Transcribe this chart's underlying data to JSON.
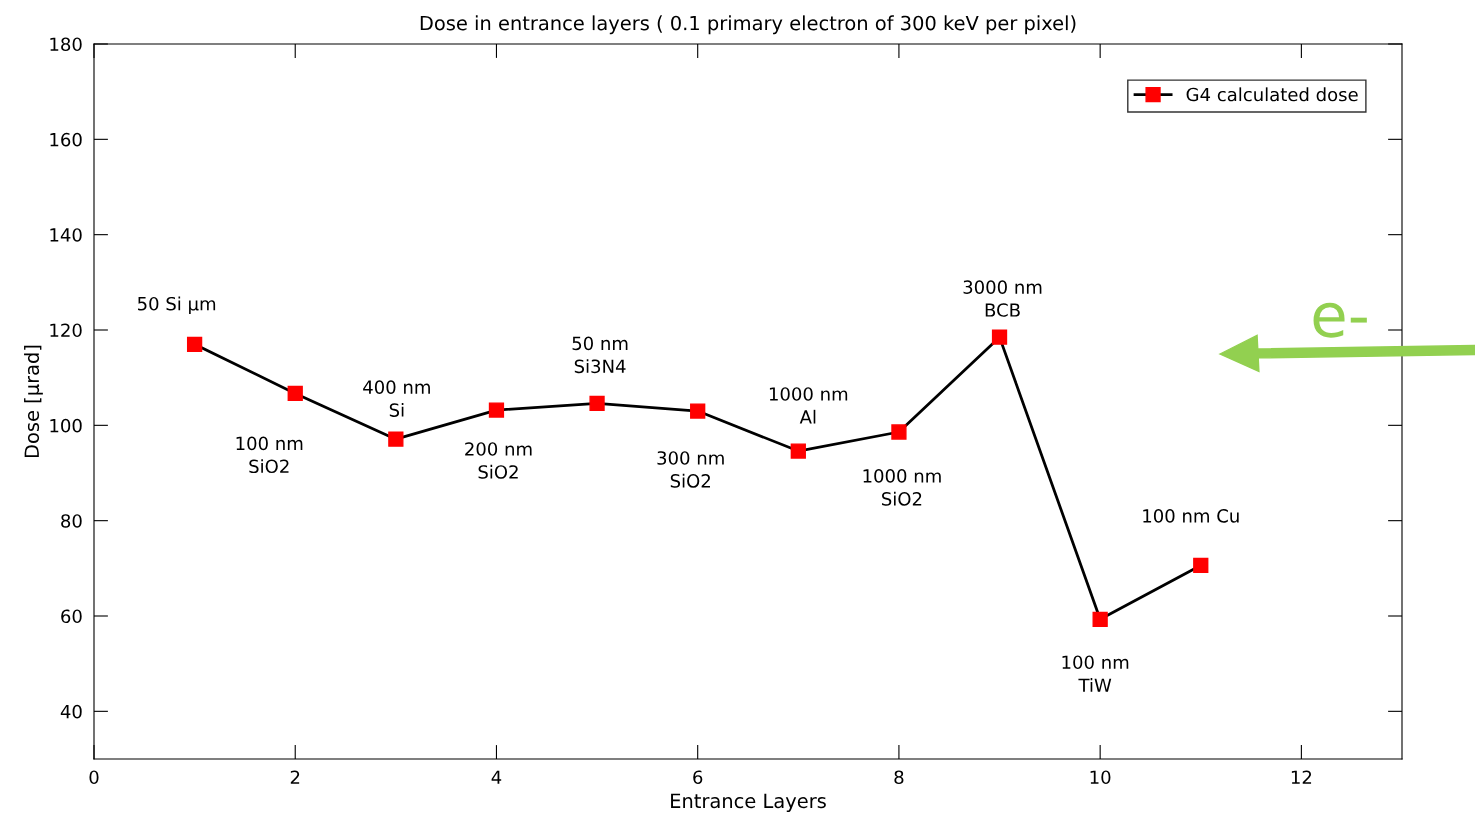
{
  "chart_data": {
    "type": "line",
    "title": "Dose in entrance layers ( 0.1 primary electron of 300 keV per pixel)",
    "xlabel": "Entrance Layers",
    "ylabel": "Dose [µrad]",
    "x": [
      1,
      2,
      3,
      4,
      5,
      6,
      7,
      8,
      9,
      10,
      11
    ],
    "series": [
      {
        "name": "G4 calculated dose",
        "color": "#ff0000",
        "values": [
          117.0,
          106.7,
          97.1,
          103.2,
          104.6,
          103.0,
          94.6,
          98.6,
          118.5,
          59.3,
          70.6
        ]
      }
    ],
    "xlim": [
      0,
      13
    ],
    "xticks": [
      0,
      2,
      4,
      6,
      8,
      10,
      12
    ],
    "ylim": [
      30,
      180
    ],
    "yticks": [
      40,
      60,
      80,
      100,
      120,
      140,
      160,
      180
    ],
    "marker": "square",
    "line_style": "solid",
    "grid": false,
    "legend": "top right",
    "annotations": [
      {
        "text": "50 Si µm",
        "x": 1,
        "y": 117.0
      },
      {
        "text": "100 nm\nSiO2",
        "x": 2,
        "y": 106.7
      },
      {
        "text": "400 nm\nSi",
        "x": 3,
        "y": 97.1
      },
      {
        "text": "200 nm\nSiO2",
        "x": 4,
        "y": 103.2
      },
      {
        "text": "50 nm\nSi3N4",
        "x": 5,
        "y": 104.6
      },
      {
        "text": "300 nm\nSiO2",
        "x": 6,
        "y": 103.0
      },
      {
        "text": "1000 nm\nAl",
        "x": 7,
        "y": 94.6
      },
      {
        "text": "1000 nm\nSiO2",
        "x": 8,
        "y": 98.6
      },
      {
        "text": "3000 nm\nBCB",
        "x": 9,
        "y": 118.5
      },
      {
        "text": "100 nm\nTiW",
        "x": 10,
        "y": 59.3
      },
      {
        "text": "100 nm Cu",
        "x": 11,
        "y": 70.6
      },
      "e-"
    ]
  }
}
